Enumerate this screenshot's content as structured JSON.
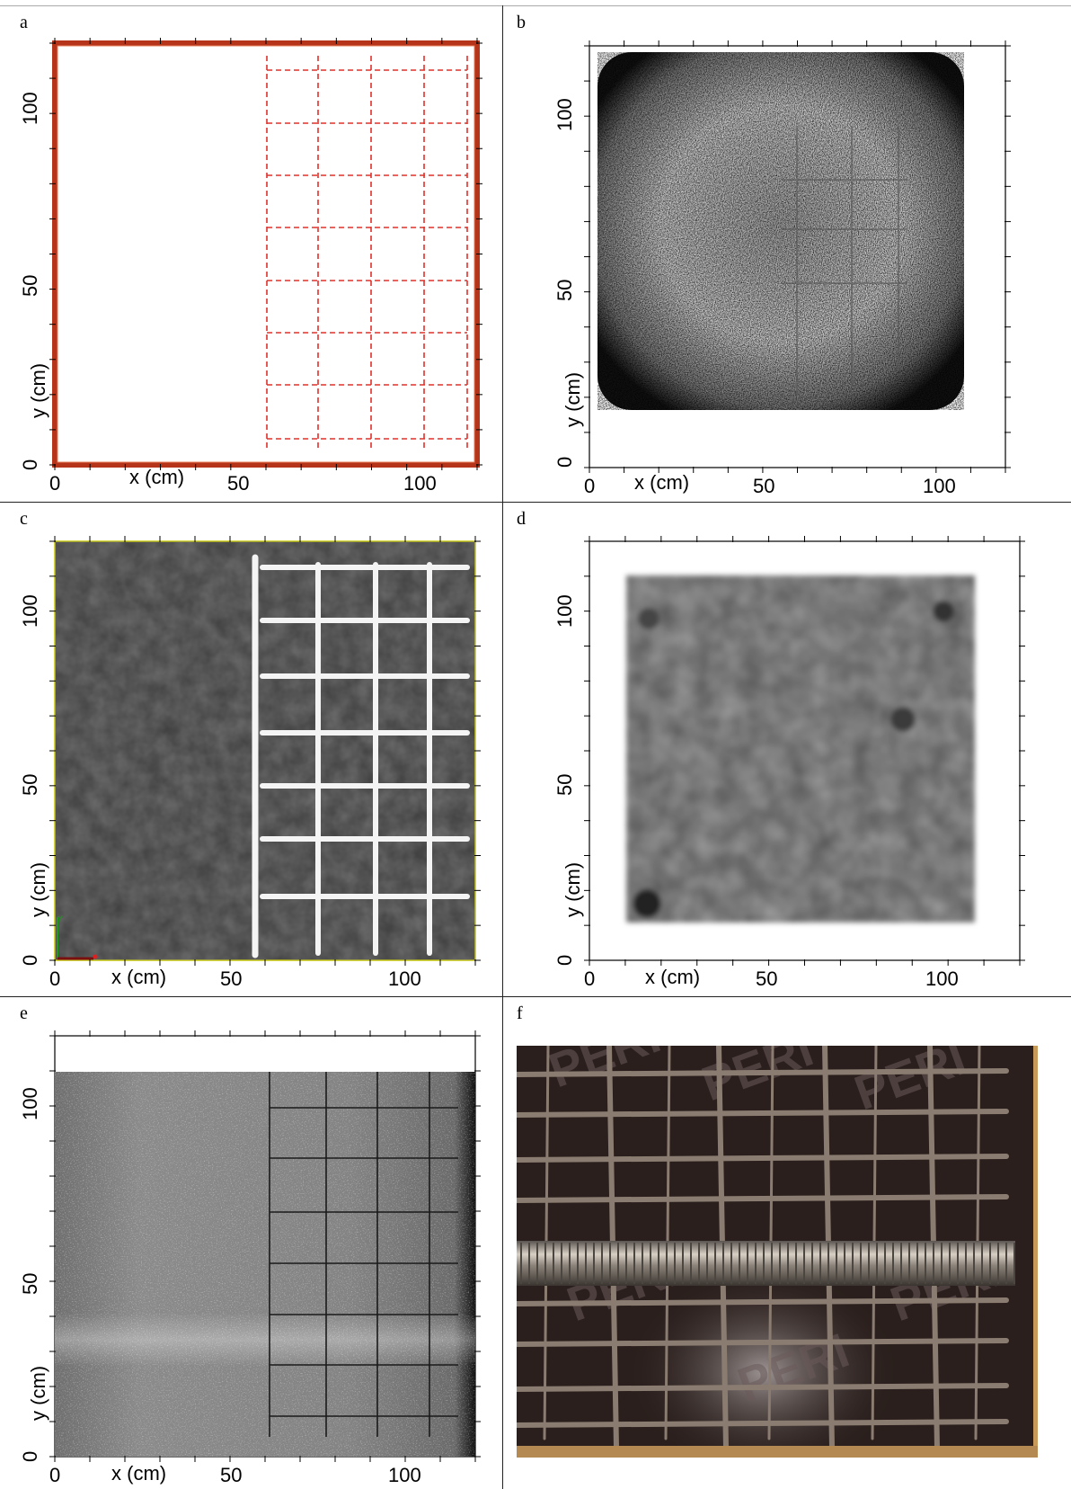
{
  "panels": {
    "a": {
      "letter": "a"
    },
    "b": {
      "letter": "b"
    },
    "c": {
      "letter": "c"
    },
    "d": {
      "letter": "d"
    },
    "e": {
      "letter": "e"
    },
    "f": {
      "letter": "f"
    }
  },
  "axes": {
    "xlabel": "x (cm)",
    "ylabel": "y (cm)",
    "x_ticks": [
      "0",
      "50",
      "100"
    ],
    "y_ticks": [
      "0",
      "50",
      "100"
    ]
  },
  "photo_logo_text": "PERI",
  "colors": {
    "panel_a_frame": "#b5341a",
    "panel_a_grid": "#e0302a",
    "panel_c_border": "#c8c800",
    "photo_background": "#2a1f1c"
  }
}
